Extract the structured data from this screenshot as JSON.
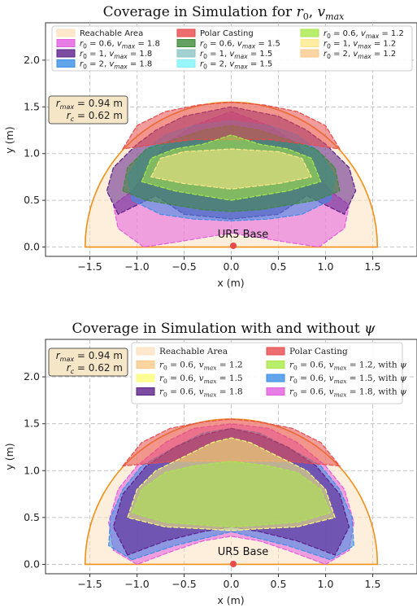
{
  "chart_data": [
    {
      "type": "area",
      "title": "Coverage in Simulation for r0, vmax",
      "xlabel": "x (m)",
      "ylabel": "y (m)",
      "xlim": [
        -2.0,
        2.0
      ],
      "ylim": [
        -0.1,
        2.4
      ],
      "xticks": [
        "−1.5",
        "−1.0",
        "−0.5",
        "0.0",
        "0.5",
        "1.0",
        "1.5"
      ],
      "yticks": [
        "0.0",
        "0.5",
        "1.0",
        "1.5",
        "2.0"
      ],
      "grid": true,
      "legend_position": "top",
      "info_box": [
        "r_max = 0.94 m",
        "r_c = 0.62 m"
      ],
      "base_label": "UR5 Base",
      "reachable": {
        "name": "Reachable Area",
        "radius": 1.55
      },
      "legend": [
        {
          "name": "Reachable Area",
          "color": "#fde2c0"
        },
        {
          "name": "r0 = 0.6, vmax = 1.8",
          "color": "#e45ce0"
        },
        {
          "name": "r0 = 1, vmax = 1.8",
          "color": "#5b1f8a"
        },
        {
          "name": "r0 = 2, vmax = 1.8",
          "color": "#3b8fe6"
        },
        {
          "name": "Polar Casting",
          "color": "#e84a4a"
        },
        {
          "name": "r0 = 0.6, vmax = 1.5",
          "color": "#3e8a3a"
        },
        {
          "name": "r0 = 1, vmax = 1.5",
          "color": "#8cc6c6"
        },
        {
          "name": "r0 = 2, vmax = 1.5",
          "color": "#7ff2ff"
        },
        {
          "name": "r0 = 0.6, vmax = 1.2",
          "color": "#a8e84a"
        },
        {
          "name": "r0 = 1, vmax = 1.2",
          "color": "#fde98a"
        },
        {
          "name": "r0 = 2, vmax = 1.2",
          "color": "#f9c98a"
        }
      ],
      "series": [
        {
          "name": "r0 = 0.6, vmax = 1.8",
          "color": "#e45ce0",
          "points": [
            [
              -0.93,
              0.0
            ],
            [
              -1.2,
              0.2
            ],
            [
              -1.25,
              0.45
            ],
            [
              -1.05,
              0.6
            ],
            [
              -0.9,
              0.8
            ],
            [
              -0.7,
              1.1
            ],
            [
              -0.4,
              1.3
            ],
            [
              0,
              1.45
            ],
            [
              0.4,
              1.3
            ],
            [
              0.7,
              1.1
            ],
            [
              0.9,
              0.8
            ],
            [
              1.05,
              0.6
            ],
            [
              1.25,
              0.45
            ],
            [
              1.2,
              0.2
            ],
            [
              0.93,
              0.0
            ],
            [
              0.6,
              0.05
            ],
            [
              0.3,
              0.1
            ],
            [
              0,
              0.15
            ],
            [
              -0.3,
              0.1
            ],
            [
              -0.6,
              0.05
            ]
          ]
        },
        {
          "name": "r0 = 1, vmax = 1.8",
          "color": "#5b1f8a",
          "points": [
            [
              -1.2,
              0.35
            ],
            [
              -1.32,
              0.6
            ],
            [
              -1.25,
              0.85
            ],
            [
              -1.0,
              1.1
            ],
            [
              -0.8,
              1.25
            ],
            [
              -0.5,
              1.4
            ],
            [
              0,
              1.5
            ],
            [
              0.5,
              1.4
            ],
            [
              0.8,
              1.25
            ],
            [
              1.0,
              1.1
            ],
            [
              1.25,
              0.85
            ],
            [
              1.32,
              0.6
            ],
            [
              1.2,
              0.35
            ],
            [
              1.0,
              0.45
            ],
            [
              0.8,
              0.55
            ],
            [
              0.5,
              0.35
            ],
            [
              0,
              0.3
            ],
            [
              -0.5,
              0.35
            ],
            [
              -0.8,
              0.55
            ],
            [
              -1.0,
              0.45
            ]
          ]
        },
        {
          "name": "r0 = 2, vmax = 1.8",
          "color": "#3b8fe6",
          "points": [
            [
              -1.05,
              0.5
            ],
            [
              -1.1,
              0.75
            ],
            [
              -0.95,
              1.0
            ],
            [
              -0.7,
              1.2
            ],
            [
              -0.4,
              1.3
            ],
            [
              0,
              1.35
            ],
            [
              0.4,
              1.3
            ],
            [
              0.7,
              1.2
            ],
            [
              0.95,
              1.0
            ],
            [
              1.1,
              0.75
            ],
            [
              1.05,
              0.5
            ],
            [
              0.75,
              0.35
            ],
            [
              0.4,
              0.3
            ],
            [
              0,
              0.28
            ],
            [
              -0.4,
              0.3
            ],
            [
              -0.75,
              0.35
            ]
          ]
        },
        {
          "name": "r0 = 0.6, vmax = 1.5",
          "color": "#3e8a3a",
          "points": [
            [
              -1.15,
              0.6
            ],
            [
              -1.1,
              0.85
            ],
            [
              -0.9,
              1.05
            ],
            [
              -0.6,
              1.15
            ],
            [
              -0.3,
              1.25
            ],
            [
              0,
              1.3
            ],
            [
              0.3,
              1.25
            ],
            [
              0.6,
              1.15
            ],
            [
              0.9,
              1.05
            ],
            [
              1.1,
              0.85
            ],
            [
              1.15,
              0.6
            ],
            [
              0.9,
              0.5
            ],
            [
              0.6,
              0.45
            ],
            [
              0.3,
              0.4
            ],
            [
              0,
              0.38
            ],
            [
              -0.3,
              0.4
            ],
            [
              -0.6,
              0.45
            ],
            [
              -0.9,
              0.5
            ]
          ]
        },
        {
          "name": "Polar Casting",
          "color": "#e84a4a",
          "points": [
            [
              -1.15,
              1.05
            ],
            [
              -1.0,
              1.3
            ],
            [
              -0.7,
              1.45
            ],
            [
              -0.35,
              1.52
            ],
            [
              0,
              1.55
            ],
            [
              0.35,
              1.52
            ],
            [
              0.7,
              1.45
            ],
            [
              1.0,
              1.3
            ],
            [
              1.15,
              1.05
            ],
            [
              0.8,
              1.1
            ],
            [
              0.4,
              1.15
            ],
            [
              0,
              1.15
            ],
            [
              -0.4,
              1.15
            ],
            [
              -0.8,
              1.1
            ]
          ]
        },
        {
          "name": "r0 = 0.6, vmax = 1.2",
          "color": "#a8e84a",
          "points": [
            [
              -0.95,
              0.7
            ],
            [
              -0.85,
              0.95
            ],
            [
              -0.6,
              1.05
            ],
            [
              -0.3,
              1.1
            ],
            [
              0,
              1.2
            ],
            [
              0.3,
              1.1
            ],
            [
              0.6,
              1.05
            ],
            [
              0.85,
              0.95
            ],
            [
              0.95,
              0.7
            ],
            [
              0.6,
              0.6
            ],
            [
              0.3,
              0.55
            ],
            [
              0,
              0.5
            ],
            [
              -0.3,
              0.55
            ],
            [
              -0.6,
              0.6
            ]
          ]
        },
        {
          "name": "r0 = 1, vmax = 1.2",
          "color": "#fde98a",
          "points": [
            [
              -0.85,
              0.75
            ],
            [
              -0.75,
              0.95
            ],
            [
              -0.5,
              1.02
            ],
            [
              0,
              1.05
            ],
            [
              0.5,
              1.02
            ],
            [
              0.75,
              0.95
            ],
            [
              0.85,
              0.75
            ],
            [
              0.5,
              0.68
            ],
            [
              0,
              0.62
            ],
            [
              -0.5,
              0.68
            ]
          ]
        }
      ]
    },
    {
      "type": "area",
      "title": "Coverage in Simulation with and without ψ",
      "xlabel": "x (m)",
      "ylabel": "y (m)",
      "xlim": [
        -2.0,
        2.0
      ],
      "ylim": [
        -0.1,
        2.4
      ],
      "xticks": [
        "−1.5",
        "−1.0",
        "−0.5",
        "0.0",
        "0.5",
        "1.0",
        "1.5"
      ],
      "yticks": [
        "0.0",
        "0.5",
        "1.0",
        "1.5",
        "2.0"
      ],
      "grid": true,
      "legend_position": "top",
      "info_box": [
        "r_max = 0.94 m",
        "r_c = 0.62 m"
      ],
      "base_label": "UR5 Base",
      "reachable": {
        "name": "Reachable Area",
        "radius": 1.55
      },
      "legend": [
        {
          "name": "Reachable Area",
          "color": "#fde2c0"
        },
        {
          "name": "r0 = 0.6, vmax = 1.2",
          "color": "#f9c98a"
        },
        {
          "name": "r0 = 0.6, vmax = 1.5",
          "color": "#fdfd7a"
        },
        {
          "name": "r0 = 0.6, vmax = 1.8",
          "color": "#5b1f8a"
        },
        {
          "name": "Polar Casting",
          "color": "#e84a4a"
        },
        {
          "name": "r0 = 0.6, vmax = 1.2, with ψ",
          "color": "#a8e84a"
        },
        {
          "name": "r0 = 0.6, vmax = 1.5, with ψ",
          "color": "#3b8fe6"
        },
        {
          "name": "r0 = 0.6, vmax = 1.8, with ψ",
          "color": "#e45ce0"
        }
      ],
      "series": [
        {
          "name": "r0 = 0.6, vmax = 1.8, with ψ",
          "color": "#e45ce0",
          "points": [
            [
              -1.0,
              0.0
            ],
            [
              -1.25,
              0.15
            ],
            [
              -1.3,
              0.45
            ],
            [
              -1.2,
              0.8
            ],
            [
              -1.0,
              1.05
            ],
            [
              -0.7,
              1.3
            ],
            [
              -0.4,
              1.45
            ],
            [
              0,
              1.5
            ],
            [
              0.4,
              1.45
            ],
            [
              0.7,
              1.3
            ],
            [
              1.0,
              1.05
            ],
            [
              1.2,
              0.8
            ],
            [
              1.3,
              0.45
            ],
            [
              1.25,
              0.15
            ],
            [
              1.0,
              0.0
            ],
            [
              0.6,
              0.15
            ],
            [
              0.3,
              0.25
            ],
            [
              0,
              0.3
            ],
            [
              -0.3,
              0.25
            ],
            [
              -0.6,
              0.15
            ]
          ]
        },
        {
          "name": "r0 = 0.6, vmax = 1.5, with ψ",
          "color": "#3b8fe6",
          "points": [
            [
              -1.05,
              0.05
            ],
            [
              -1.3,
              0.2
            ],
            [
              -1.28,
              0.5
            ],
            [
              -1.15,
              0.8
            ],
            [
              -0.95,
              1.05
            ],
            [
              -0.6,
              1.25
            ],
            [
              -0.3,
              1.4
            ],
            [
              0,
              1.45
            ],
            [
              0.3,
              1.4
            ],
            [
              0.6,
              1.25
            ],
            [
              0.95,
              1.05
            ],
            [
              1.15,
              0.8
            ],
            [
              1.28,
              0.5
            ],
            [
              1.3,
              0.2
            ],
            [
              1.05,
              0.05
            ],
            [
              0.6,
              0.2
            ],
            [
              0,
              0.35
            ],
            [
              -0.6,
              0.2
            ]
          ]
        },
        {
          "name": "r0 = 0.6, vmax = 1.8",
          "color": "#5b1f8a",
          "points": [
            [
              -1.1,
              0.1
            ],
            [
              -1.25,
              0.4
            ],
            [
              -1.15,
              0.75
            ],
            [
              -0.9,
              1.05
            ],
            [
              -0.6,
              1.25
            ],
            [
              -0.3,
              1.38
            ],
            [
              0,
              1.45
            ],
            [
              0.3,
              1.38
            ],
            [
              0.6,
              1.25
            ],
            [
              0.9,
              1.05
            ],
            [
              1.15,
              0.75
            ],
            [
              1.25,
              0.4
            ],
            [
              1.1,
              0.1
            ],
            [
              0.7,
              0.25
            ],
            [
              0.3,
              0.35
            ],
            [
              0,
              0.4
            ],
            [
              -0.3,
              0.35
            ],
            [
              -0.7,
              0.25
            ]
          ]
        },
        {
          "name": "Polar Casting",
          "color": "#e84a4a",
          "points": [
            [
              -1.15,
              1.05
            ],
            [
              -0.95,
              1.3
            ],
            [
              -0.65,
              1.45
            ],
            [
              -0.3,
              1.52
            ],
            [
              0,
              1.55
            ],
            [
              0.3,
              1.52
            ],
            [
              0.65,
              1.45
            ],
            [
              0.95,
              1.3
            ],
            [
              1.15,
              1.05
            ],
            [
              0.6,
              1.1
            ],
            [
              0,
              1.1
            ],
            [
              -0.6,
              1.1
            ]
          ]
        },
        {
          "name": "r0 = 0.6, vmax = 1.5",
          "color": "#fdfd7a",
          "points": [
            [
              -1.1,
              0.5
            ],
            [
              -1.0,
              0.8
            ],
            [
              -0.8,
              1.0
            ],
            [
              -0.5,
              1.15
            ],
            [
              -0.2,
              1.3
            ],
            [
              0,
              1.35
            ],
            [
              0.2,
              1.3
            ],
            [
              0.5,
              1.15
            ],
            [
              0.8,
              1.0
            ],
            [
              1.0,
              0.8
            ],
            [
              1.1,
              0.5
            ],
            [
              0.7,
              0.4
            ],
            [
              0.3,
              0.38
            ],
            [
              0,
              0.36
            ],
            [
              -0.3,
              0.38
            ],
            [
              -0.7,
              0.4
            ]
          ]
        },
        {
          "name": "r0 = 0.6, vmax = 1.2, with ψ",
          "color": "#a8e84a",
          "points": [
            [
              -1.05,
              0.55
            ],
            [
              -0.95,
              0.8
            ],
            [
              -0.7,
              0.98
            ],
            [
              -0.4,
              1.05
            ],
            [
              0,
              1.1
            ],
            [
              0.4,
              1.05
            ],
            [
              0.7,
              0.98
            ],
            [
              0.95,
              0.8
            ],
            [
              1.05,
              0.55
            ],
            [
              0.7,
              0.45
            ],
            [
              0.3,
              0.42
            ],
            [
              0,
              0.4
            ],
            [
              -0.3,
              0.42
            ],
            [
              -0.7,
              0.45
            ]
          ]
        }
      ]
    }
  ]
}
